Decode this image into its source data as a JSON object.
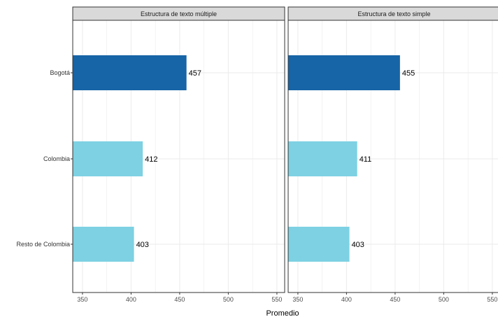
{
  "chart_data": {
    "type": "bar",
    "orientation": "horizontal",
    "xlabel": "Promedio",
    "ylabel": "",
    "xlim": [
      340,
      560
    ],
    "x_ticks": [
      350,
      400,
      450,
      500,
      550
    ],
    "categories": [
      "Bogotá",
      "Colombia",
      "Resto de Colombia"
    ],
    "grid": true,
    "colors": {
      "Bogotá": "#1764a6",
      "Colombia": "#7dd1e2",
      "Resto de Colombia": "#7dd1e2"
    },
    "panels": [
      {
        "title": "Estructura de texto múltiple",
        "values": [
          457,
          412,
          403
        ]
      },
      {
        "title": "Estructura de texto simple",
        "values": [
          455,
          411,
          403
        ]
      }
    ]
  }
}
